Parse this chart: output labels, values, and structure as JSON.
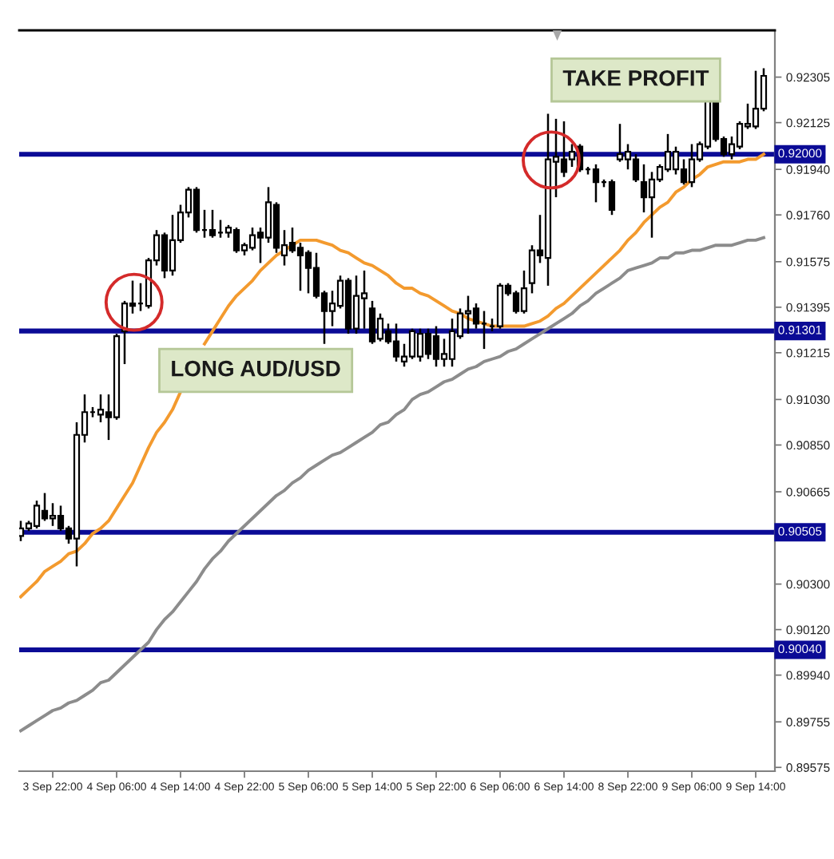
{
  "chart_data": {
    "type": "candlestick",
    "categories": [
      null,
      null,
      null,
      null,
      "3 Sep 22:00",
      null,
      null,
      null,
      null,
      null,
      null,
      null,
      "4 Sep 06:00",
      null,
      null,
      null,
      null,
      null,
      null,
      null,
      "4 Sep 14:00",
      null,
      null,
      null,
      null,
      null,
      null,
      null,
      "4 Sep 22:00",
      null,
      null,
      null,
      null,
      null,
      null,
      null,
      "5 Sep 06:00",
      null,
      null,
      null,
      null,
      null,
      null,
      null,
      "5 Sep 14:00",
      null,
      null,
      null,
      null,
      null,
      null,
      null,
      "5 Sep 22:00",
      null,
      null,
      null,
      null,
      null,
      null,
      null,
      "6 Sep 06:00",
      null,
      null,
      null,
      null,
      null,
      null,
      null,
      "6 Sep 14:00",
      null,
      null,
      null,
      null,
      null,
      null,
      null,
      "8 Sep 22:00",
      null,
      null,
      null,
      null,
      null,
      null,
      null,
      "9 Sep 06:00",
      null,
      null,
      null,
      null,
      null,
      null,
      null,
      "9 Sep 14:00",
      null
    ],
    "ohlc": [
      [
        0.9049,
        0.9055,
        0.9047,
        0.9052
      ],
      [
        0.9052,
        0.9055,
        0.9051,
        0.9054
      ],
      [
        0.9053,
        0.9063,
        0.9052,
        0.9061
      ],
      [
        0.9059,
        0.9066,
        0.9055,
        0.9056
      ],
      [
        0.9056,
        0.9062,
        0.9053,
        0.9057
      ],
      [
        0.9057,
        0.9061,
        0.9051,
        0.9052
      ],
      [
        0.9052,
        0.9053,
        0.9046,
        0.9048
      ],
      [
        0.9048,
        0.9094,
        0.9037,
        0.9089
      ],
      [
        0.9089,
        0.9105,
        0.9086,
        0.9098
      ],
      [
        0.9098,
        0.91,
        0.9096,
        0.9098
      ],
      [
        0.9097,
        0.9105,
        0.9094,
        0.9099
      ],
      [
        0.9098,
        0.9105,
        0.9087,
        0.9096
      ],
      [
        0.9096,
        0.9129,
        0.9095,
        0.9128
      ],
      [
        0.913,
        0.9142,
        0.9117,
        0.9141
      ],
      [
        0.9141,
        0.915,
        0.9137,
        0.914
      ],
      [
        0.9141,
        0.9149,
        0.9138,
        0.9141
      ],
      [
        0.914,
        0.9159,
        0.9139,
        0.9158
      ],
      [
        0.9158,
        0.917,
        0.9156,
        0.9168
      ],
      [
        0.9168,
        0.9169,
        0.9151,
        0.9154
      ],
      [
        0.9154,
        0.9176,
        0.9152,
        0.9166
      ],
      [
        0.9166,
        0.918,
        0.9165,
        0.9177
      ],
      [
        0.9177,
        0.9187,
        0.9175,
        0.9186
      ],
      [
        0.9186,
        0.9187,
        0.9169,
        0.917
      ],
      [
        0.917,
        0.9178,
        0.9167,
        0.917
      ],
      [
        0.917,
        0.9178,
        0.9167,
        0.9168
      ],
      [
        0.9169,
        0.9174,
        0.9167,
        0.9169
      ],
      [
        0.9169,
        0.9172,
        0.9167,
        0.9171
      ],
      [
        0.917,
        0.9171,
        0.9161,
        0.9162
      ],
      [
        0.9162,
        0.9165,
        0.916,
        0.9164
      ],
      [
        0.9163,
        0.9171,
        0.9162,
        0.9168
      ],
      [
        0.9169,
        0.9171,
        0.9157,
        0.9167
      ],
      [
        0.9167,
        0.9187,
        0.9165,
        0.9181
      ],
      [
        0.918,
        0.9181,
        0.9161,
        0.9163
      ],
      [
        0.916,
        0.917,
        0.9156,
        0.9164
      ],
      [
        0.9165,
        0.9171,
        0.9161,
        0.9162
      ],
      [
        0.9163,
        0.9165,
        0.9146,
        0.916
      ],
      [
        0.9161,
        0.9162,
        0.9145,
        0.9155
      ],
      [
        0.9155,
        0.9161,
        0.9143,
        0.9144
      ],
      [
        0.9145,
        0.9146,
        0.9125,
        0.9138
      ],
      [
        0.9138,
        0.9146,
        0.9132,
        0.9141
      ],
      [
        0.914,
        0.9152,
        0.9139,
        0.915
      ],
      [
        0.915,
        0.9151,
        0.9129,
        0.9131
      ],
      [
        0.9131,
        0.9152,
        0.9129,
        0.9144
      ],
      [
        0.9143,
        0.9154,
        0.9131,
        0.9145
      ],
      [
        0.9139,
        0.9142,
        0.9125,
        0.9126
      ],
      [
        0.9127,
        0.9137,
        0.9126,
        0.9135
      ],
      [
        0.913,
        0.9133,
        0.9125,
        0.9126
      ],
      [
        0.9126,
        0.9133,
        0.9118,
        0.912
      ],
      [
        0.9118,
        0.9125,
        0.9116,
        0.912
      ],
      [
        0.912,
        0.9131,
        0.9119,
        0.913
      ],
      [
        0.912,
        0.9131,
        0.9118,
        0.9129
      ],
      [
        0.9129,
        0.9131,
        0.9119,
        0.9121
      ],
      [
        0.9128,
        0.9132,
        0.9116,
        0.9119
      ],
      [
        0.9119,
        0.9127,
        0.9116,
        0.9121
      ],
      [
        0.9119,
        0.9135,
        0.9116,
        0.913
      ],
      [
        0.9128,
        0.9139,
        0.9127,
        0.9137
      ],
      [
        0.9137,
        0.9144,
        0.9129,
        0.9138
      ],
      [
        0.9139,
        0.9141,
        0.9131,
        0.9133
      ],
      [
        0.9133,
        0.9138,
        0.9123,
        0.9133
      ],
      [
        0.9132,
        0.9135,
        0.913,
        0.9132
      ],
      [
        0.9132,
        0.9149,
        0.9131,
        0.9148
      ],
      [
        0.9148,
        0.9149,
        0.9144,
        0.9145
      ],
      [
        0.9145,
        0.9146,
        0.9137,
        0.9138
      ],
      [
        0.9138,
        0.9154,
        0.9137,
        0.9147
      ],
      [
        0.9149,
        0.9164,
        0.9145,
        0.9162
      ],
      [
        0.9162,
        0.9176,
        0.9157,
        0.916
      ],
      [
        0.9159,
        0.9216,
        0.9148,
        0.9198
      ],
      [
        0.9197,
        0.9214,
        0.9183,
        0.9199
      ],
      [
        0.9198,
        0.9213,
        0.9191,
        0.9193
      ],
      [
        0.9198,
        0.9204,
        0.9195,
        0.9201
      ],
      [
        0.9203,
        0.9204,
        0.9193,
        0.9194
      ],
      [
        0.9194,
        0.9195,
        0.9192,
        0.9194
      ],
      [
        0.9194,
        0.9196,
        0.9181,
        0.9189
      ],
      [
        0.9189,
        0.919,
        0.9187,
        0.9189
      ],
      [
        0.9189,
        0.919,
        0.9176,
        0.9178
      ],
      [
        0.9198,
        0.9212,
        0.9197,
        0.92
      ],
      [
        0.9198,
        0.9204,
        0.9194,
        0.9201
      ],
      [
        0.9198,
        0.92,
        0.9189,
        0.919
      ],
      [
        0.9189,
        0.9196,
        0.9177,
        0.9183
      ],
      [
        0.9183,
        0.9193,
        0.9167,
        0.919
      ],
      [
        0.919,
        0.9196,
        0.9189,
        0.9195
      ],
      [
        0.9194,
        0.9208,
        0.9193,
        0.9201
      ],
      [
        0.9194,
        0.9203,
        0.9192,
        0.9201
      ],
      [
        0.9194,
        0.9198,
        0.9188,
        0.9189
      ],
      [
        0.9189,
        0.9204,
        0.9187,
        0.9198
      ],
      [
        0.9198,
        0.9205,
        0.9197,
        0.9204
      ],
      [
        0.9203,
        0.9222,
        0.9202,
        0.9222
      ],
      [
        0.9222,
        0.9222,
        0.9205,
        0.9206
      ],
      [
        0.9206,
        0.9207,
        0.9199,
        0.92
      ],
      [
        0.92,
        0.9207,
        0.9198,
        0.9204
      ],
      [
        0.9203,
        0.9213,
        0.9202,
        0.9212
      ],
      [
        0.9211,
        0.922,
        0.921,
        0.9212
      ],
      [
        0.9211,
        0.9233,
        0.921,
        0.9218
      ],
      [
        0.9218,
        0.9234,
        0.9217,
        0.9231
      ]
    ],
    "series": [
      {
        "type": "line",
        "color": "#f39a2e",
        "values": [
          0.9025,
          0.9028,
          0.9031,
          0.9035,
          0.9037,
          0.9039,
          0.9042,
          0.9043,
          0.9046,
          0.905,
          0.9052,
          0.9055,
          0.906,
          0.9065,
          0.907,
          0.9077,
          0.9084,
          0.909,
          0.9094,
          0.9099,
          0.9106,
          null,
          null,
          0.9125,
          0.913,
          0.9135,
          0.914,
          0.9144,
          0.9147,
          0.915,
          0.9154,
          0.9157,
          0.916,
          0.9162,
          0.9164,
          0.9166,
          0.9166,
          0.9166,
          0.9165,
          0.9164,
          0.9162,
          0.9161,
          0.9159,
          0.9157,
          0.9156,
          0.9154,
          0.9152,
          0.9149,
          0.9147,
          0.9147,
          0.9145,
          0.9144,
          0.9142,
          0.914,
          0.9138,
          0.9137,
          0.9135,
          0.9134,
          0.9133,
          0.9132,
          0.9132,
          0.9132,
          0.9132,
          0.9132,
          0.9133,
          0.9134,
          0.9136,
          0.9139,
          0.9141,
          0.9144,
          0.9147,
          0.915,
          0.9153,
          0.9156,
          0.9159,
          0.9162,
          0.9166,
          0.9169,
          0.9173,
          0.9176,
          0.9179,
          0.9181,
          0.9185,
          0.9187,
          0.919,
          0.9192,
          0.9195,
          0.9196,
          0.9197,
          0.9197,
          0.9197,
          0.9198,
          0.9198,
          0.92
        ]
      },
      {
        "type": "line",
        "color": "#8c8c8c",
        "values": [
          0.8972,
          0.8974,
          0.8976,
          0.8978,
          0.898,
          0.8981,
          0.8983,
          0.8984,
          0.8986,
          0.8988,
          0.8991,
          0.8992,
          0.8995,
          0.8998,
          0.9001,
          0.9004,
          0.9007,
          0.9012,
          0.9016,
          0.9019,
          0.9023,
          0.9027,
          0.9031,
          0.9036,
          0.904,
          0.9043,
          0.9047,
          0.905,
          0.9053,
          0.9056,
          0.9059,
          0.9062,
          0.9065,
          0.9067,
          0.907,
          0.9072,
          0.9075,
          0.9077,
          0.9079,
          0.9081,
          0.9082,
          0.9084,
          0.9086,
          0.9088,
          0.909,
          0.9093,
          0.9094,
          0.9097,
          0.9099,
          0.9103,
          0.9105,
          0.9106,
          0.9108,
          0.911,
          0.9111,
          0.9113,
          0.9115,
          0.9116,
          0.9118,
          0.9119,
          0.912,
          0.9122,
          0.9123,
          0.9125,
          0.9127,
          0.9129,
          0.9131,
          0.9133,
          0.9135,
          0.9137,
          0.914,
          0.9142,
          0.9145,
          0.9147,
          0.9149,
          0.9151,
          0.9154,
          0.9155,
          0.9156,
          0.9157,
          0.9159,
          0.9159,
          0.9161,
          0.9161,
          0.9162,
          0.9162,
          0.9163,
          0.9164,
          0.9164,
          0.9164,
          0.9165,
          0.9166,
          0.9166,
          0.9167
        ]
      }
    ],
    "ylim": [
      0.8956,
      0.9249
    ],
    "yticks": [
      0.89575,
      0.89755,
      {
        "value": 0.8994,
        "label": "0.89940"
      },
      {
        "value": 0.9012,
        "label": "0.90120"
      },
      {
        "value": 0.903,
        "label": "0.90300"
      },
      0.90665,
      {
        "value": 0.9085,
        "label": "0.90850"
      },
      {
        "value": 0.9103,
        "label": "0.91030"
      },
      0.91215,
      0.91395,
      0.91575,
      {
        "value": 0.9176,
        "label": "0.91760"
      },
      {
        "value": 0.9194,
        "label": "0.91940"
      },
      0.92125,
      0.92305
    ],
    "ref_lines": [
      {
        "axis": "y",
        "value": 0.92,
        "label": "0.92000",
        "color": "#0b0b96"
      },
      {
        "axis": "y",
        "value": 0.91301,
        "label": "0.91301",
        "color": "#0b0b96"
      },
      {
        "axis": "y",
        "value": 0.90505,
        "label": "0.90505",
        "color": "#0b0b96"
      },
      {
        "axis": "y",
        "value": 0.9004,
        "label": "0.90040",
        "color": "#0b0b96"
      }
    ],
    "annotations": [
      "TAKE PROFIT",
      "LONG AUD/USD"
    ]
  }
}
